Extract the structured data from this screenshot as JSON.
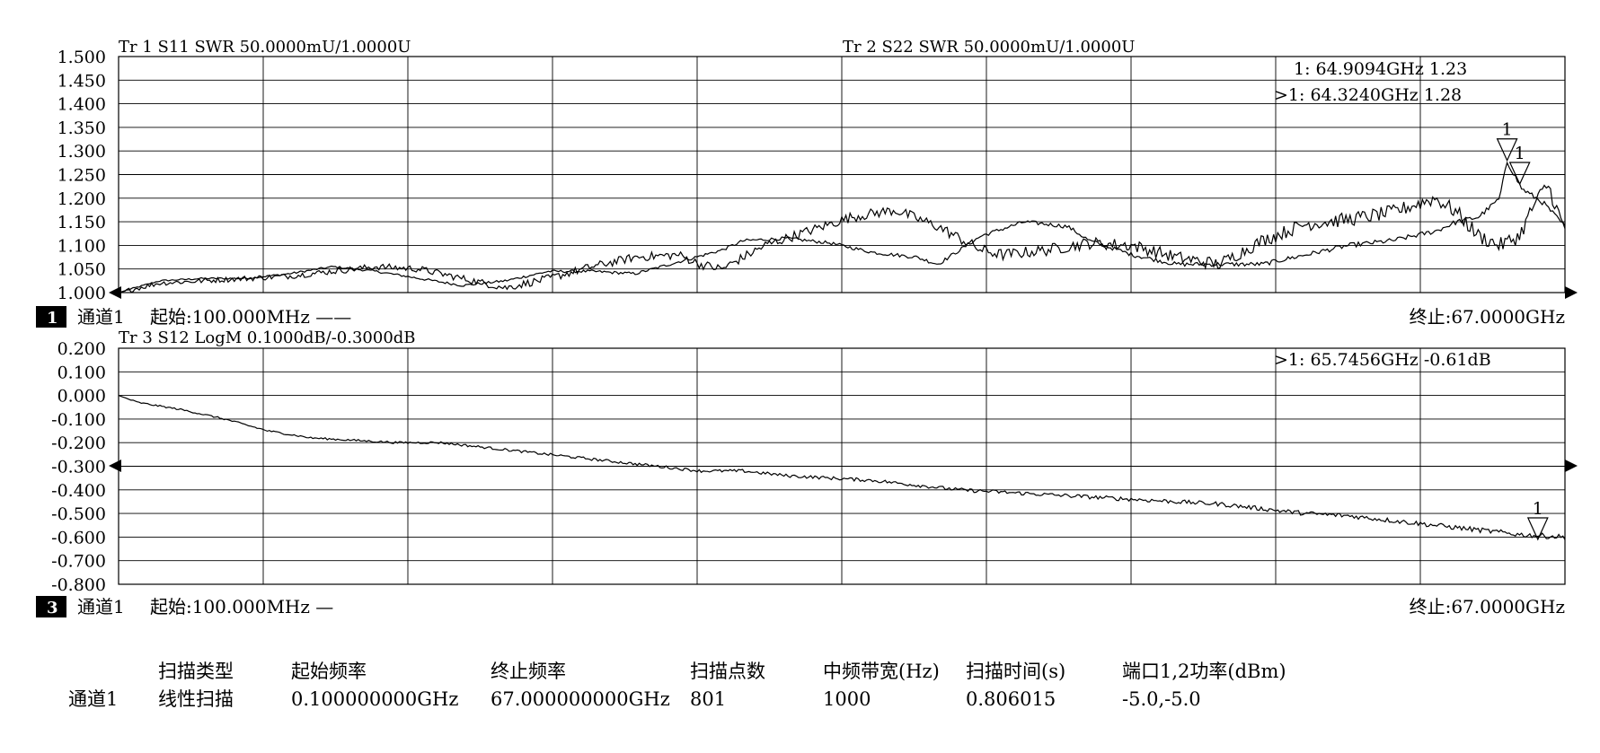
{
  "chart_data": [
    {
      "type": "line",
      "panel": "top",
      "traces": [
        {
          "label": "Tr 1  S11 SWR 50.0000mU/1.0000U"
        },
        {
          "label": "Tr 2  S22 SWR 50.0000mU/1.0000U"
        }
      ],
      "ylim": [
        1.0,
        1.5
      ],
      "xlim_ghz": [
        0.1,
        67.0
      ],
      "yticks": [
        "1.500",
        "1.450",
        "1.400",
        "1.350",
        "1.300",
        "1.250",
        "1.200",
        "1.150",
        "1.100",
        "1.050",
        "1.000"
      ],
      "grid": true,
      "markers": [
        {
          "text": "1:    64.9094GHz 1.23",
          "x": 64.9094,
          "y": 1.23,
          "label": "1"
        },
        {
          "text": ">1:    64.3240GHz 1.28",
          "x": 64.324,
          "y": 1.28,
          "label": "1"
        }
      ],
      "series": [
        {
          "x": [
            0.1,
            2,
            4,
            6,
            8,
            10,
            12,
            14,
            16,
            18,
            20,
            22,
            24,
            26,
            28,
            29,
            31,
            33,
            35,
            37,
            38,
            40,
            42,
            44,
            45,
            47,
            49,
            51,
            53,
            55,
            57,
            59,
            61,
            62,
            63,
            64,
            64.3,
            65,
            66,
            67
          ],
          "y": [
            1.0,
            1.025,
            1.03,
            1.03,
            1.04,
            1.055,
            1.045,
            1.03,
            1.015,
            1.025,
            1.045,
            1.045,
            1.04,
            1.065,
            1.09,
            1.11,
            1.115,
            1.105,
            1.085,
            1.075,
            1.06,
            1.12,
            1.15,
            1.14,
            1.11,
            1.08,
            1.06,
            1.06,
            1.06,
            1.08,
            1.1,
            1.11,
            1.13,
            1.15,
            1.16,
            1.2,
            1.28,
            1.22,
            1.19,
            1.14
          ]
        },
        {
          "x": [
            0.1,
            2,
            4,
            6,
            8,
            10,
            12,
            14,
            16,
            18,
            20,
            22,
            24,
            26,
            27,
            28,
            30,
            32,
            34,
            36,
            38,
            40,
            41,
            43,
            45,
            47,
            49,
            51,
            53,
            55,
            57,
            59,
            61,
            62,
            63,
            64,
            64.9,
            65.5,
            66.2,
            67
          ],
          "y": [
            1.0,
            1.02,
            1.025,
            1.03,
            1.035,
            1.045,
            1.055,
            1.05,
            1.03,
            1.01,
            1.03,
            1.055,
            1.075,
            1.08,
            1.06,
            1.05,
            1.1,
            1.13,
            1.16,
            1.175,
            1.14,
            1.09,
            1.08,
            1.09,
            1.105,
            1.1,
            1.075,
            1.06,
            1.11,
            1.145,
            1.155,
            1.17,
            1.2,
            1.17,
            1.12,
            1.1,
            1.12,
            1.18,
            1.23,
            1.13
          ]
        }
      ],
      "footer": {
        "badge": "1",
        "channel": "通道1",
        "start": "起始:100.000MHz ——",
        "stop": "终止:67.0000GHz"
      }
    },
    {
      "type": "line",
      "panel": "bottom",
      "traces": [
        {
          "label": "Tr 3  S12 LogM 0.1000dB/-0.3000dB"
        }
      ],
      "ylim": [
        -0.8,
        0.2
      ],
      "xlim_ghz": [
        0.1,
        67.0
      ],
      "yticks": [
        "0.200",
        "0.100",
        "0.000",
        "-0.100",
        "-0.200",
        "-0.300",
        "-0.400",
        "-0.500",
        "-0.600",
        "-0.700",
        "-0.800"
      ],
      "grid": true,
      "markers": [
        {
          "text": ">1:    65.7456GHz -0.61dB",
          "x": 65.7456,
          "y": -0.61,
          "label": "1"
        }
      ],
      "series": [
        {
          "x": [
            0.1,
            1,
            3,
            5,
            7,
            9,
            11,
            13,
            15,
            17,
            19,
            21,
            23,
            25,
            27,
            29,
            31,
            33,
            35,
            37,
            39,
            41,
            43,
            45,
            47,
            49,
            51,
            53,
            55,
            57,
            59,
            61,
            63,
            65,
            67
          ],
          "y": [
            0.0,
            -0.03,
            -0.06,
            -0.1,
            -0.15,
            -0.18,
            -0.19,
            -0.2,
            -0.2,
            -0.22,
            -0.24,
            -0.26,
            -0.28,
            -0.3,
            -0.32,
            -0.32,
            -0.34,
            -0.35,
            -0.36,
            -0.38,
            -0.4,
            -0.41,
            -0.42,
            -0.43,
            -0.44,
            -0.45,
            -0.46,
            -0.48,
            -0.5,
            -0.51,
            -0.53,
            -0.55,
            -0.57,
            -0.59,
            -0.6
          ]
        }
      ],
      "footer": {
        "badge": "3",
        "channel": "通道1",
        "start": "起始:100.000MHz —",
        "stop": "终止:67.0000GHz"
      }
    }
  ],
  "summary": {
    "headers": [
      "扫描类型",
      "起始频率",
      "终止频率",
      "扫描点数",
      "中频带宽(Hz)",
      "扫描时间(s)",
      "端口1,2功率(dBm)"
    ],
    "row_label": "通道1",
    "values": [
      "线性扫描",
      "0.100000000GHz",
      "67.000000000GHz",
      "801",
      "1000",
      "0.806015",
      "-5.0,-5.0"
    ]
  }
}
